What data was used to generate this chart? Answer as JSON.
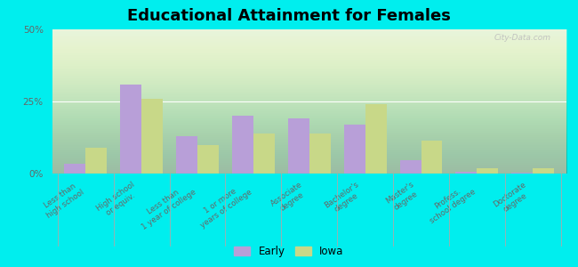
{
  "title": "Educational Attainment for Females",
  "categories": [
    "Less than\nhigh school",
    "High school\nor equiv.",
    "Less than\n1 year of college",
    "1 or more\nyears of college",
    "Associate\ndegree",
    "Bachelor's\ndegree",
    "Master's\ndegree",
    "Profess.\nschool degree",
    "Doctorate\ndegree"
  ],
  "early_values": [
    3.5,
    31.0,
    13.0,
    20.0,
    19.0,
    17.0,
    4.5,
    0.5,
    0.3
  ],
  "iowa_values": [
    9.0,
    26.0,
    10.0,
    14.0,
    14.0,
    24.0,
    11.5,
    2.0,
    2.0
  ],
  "early_color": "#b89fd8",
  "iowa_color": "#c8d888",
  "ylim": [
    0,
    50
  ],
  "yticks": [
    0,
    25,
    50
  ],
  "ytick_labels": [
    "0%",
    "25%",
    "50%"
  ],
  "plot_bg_color": "#dff0d8",
  "outer_background": "#00eeee",
  "bar_width": 0.38,
  "legend_early": "Early",
  "legend_iowa": "Iowa",
  "title_fontsize": 13,
  "tick_fontsize": 6.2,
  "watermark": "City-Data.com"
}
